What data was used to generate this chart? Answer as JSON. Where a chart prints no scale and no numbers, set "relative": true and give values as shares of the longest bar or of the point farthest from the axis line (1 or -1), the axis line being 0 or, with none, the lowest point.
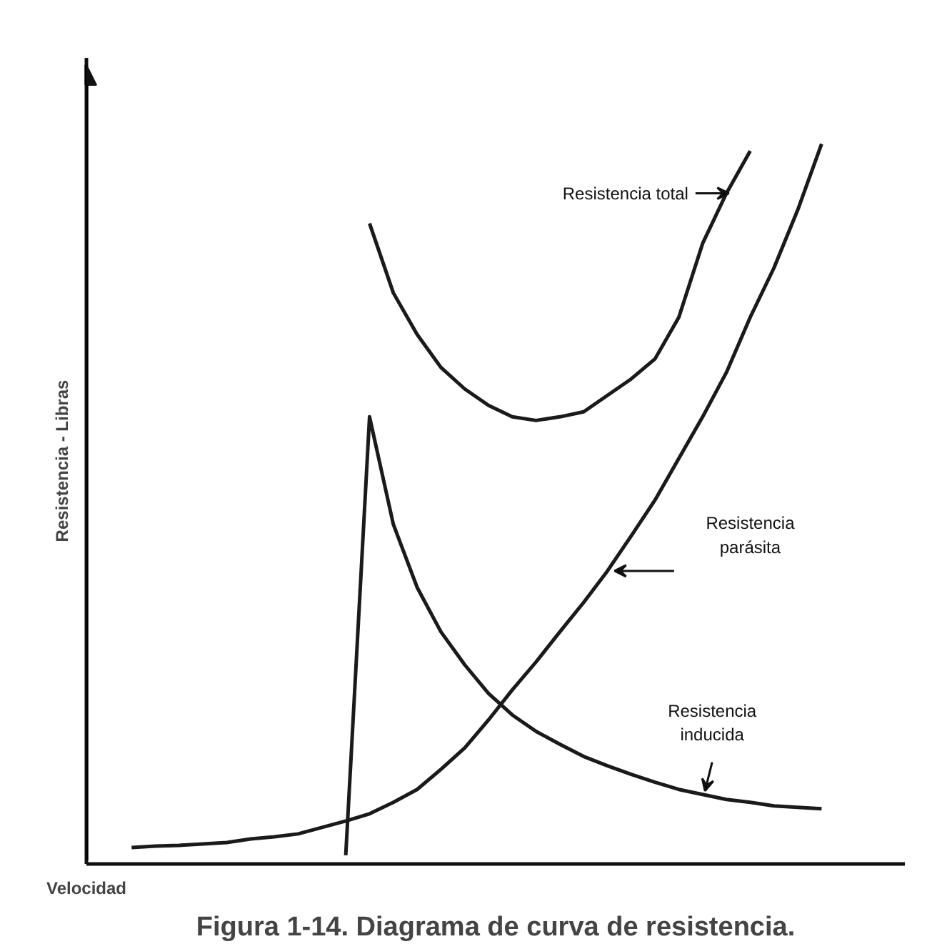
{
  "chart_data": {
    "type": "line",
    "relative": true,
    "title": "Figura 1-14. Diagrama de curva de resistencia.",
    "xlabel": "Velocidad",
    "ylabel": "Resistencia - Libras",
    "categories": [
      null,
      null,
      null,
      null,
      null,
      null,
      null,
      null,
      null,
      null,
      null,
      null,
      null,
      null,
      null,
      null,
      null,
      null,
      null,
      null,
      null,
      null,
      null,
      null,
      null,
      null,
      null,
      null,
      null,
      null,
      null
    ],
    "series": [
      {
        "name": "Resistencia total",
        "color": "#1a1a1a",
        "values": [
          null,
          null,
          null,
          null,
          null,
          null,
          null,
          null,
          null,
          null,
          0.889,
          0.792,
          0.734,
          0.688,
          0.658,
          0.635,
          0.619,
          0.614,
          0.619,
          0.626,
          0.649,
          0.672,
          0.7,
          0.758,
          0.861,
          0.931,
          0.99,
          null,
          null,
          null,
          null
        ]
      },
      {
        "name": "Resistencia\nparásita",
        "color": "#1a1a1a",
        "values": [
          0.018,
          0.02,
          0.021,
          0.023,
          0.025,
          0.03,
          0.033,
          0.037,
          0.046,
          0.055,
          0.065,
          0.081,
          0.099,
          0.127,
          0.157,
          0.196,
          0.238,
          0.277,
          0.319,
          0.36,
          0.404,
          0.453,
          0.503,
          0.561,
          0.619,
          0.681,
          0.758,
          0.827,
          0.908,
          1.0,
          null
        ]
      },
      {
        "name": "Resistencia\ninducida",
        "color": "#1a1a1a",
        "values": [
          null,
          null,
          null,
          null,
          null,
          null,
          null,
          null,
          null,
          0.007,
          0.619,
          0.469,
          0.381,
          0.319,
          0.273,
          0.233,
          0.203,
          0.18,
          0.162,
          0.145,
          0.132,
          0.12,
          0.109,
          0.099,
          0.092,
          0.085,
          0.081,
          0.076,
          0.074,
          0.072,
          null
        ]
      }
    ],
    "grid": false,
    "tick_labels": false,
    "line_style": "solid",
    "marker": "none"
  }
}
